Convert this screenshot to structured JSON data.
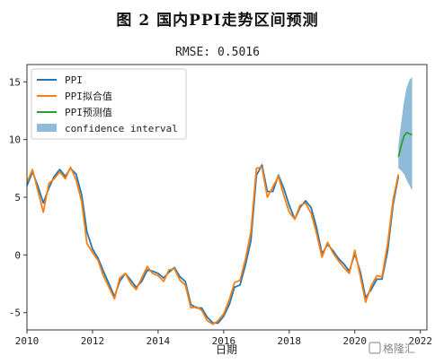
{
  "figure_title": "图 2   国内PPI走势区间预测",
  "watermark": "格隆汇",
  "chart_data": {
    "type": "line",
    "subtitle": "RMSE: 0.5016",
    "xlabel": "日期",
    "ylabel": "",
    "xlim": [
      2010.0,
      2022.2
    ],
    "ylim": [
      -6.5,
      16.5
    ],
    "xticks": [
      2010,
      2012,
      2014,
      2016,
      2018,
      2020,
      2022
    ],
    "yticks": [
      -5,
      0,
      5,
      10,
      15
    ],
    "grid": false,
    "legend_position": "top-left",
    "series": [
      {
        "name": "PPI",
        "color": "#1f77b4",
        "x": [
          2010.0,
          2010.17,
          2010.33,
          2010.5,
          2010.67,
          2010.83,
          2011.0,
          2011.17,
          2011.33,
          2011.5,
          2011.67,
          2011.83,
          2012.0,
          2012.17,
          2012.33,
          2012.5,
          2012.67,
          2012.83,
          2013.0,
          2013.17,
          2013.33,
          2013.5,
          2013.67,
          2013.83,
          2014.0,
          2014.17,
          2014.33,
          2014.5,
          2014.67,
          2014.83,
          2015.0,
          2015.17,
          2015.33,
          2015.5,
          2015.67,
          2015.83,
          2016.0,
          2016.17,
          2016.33,
          2016.5,
          2016.67,
          2016.83,
          2017.0,
          2017.17,
          2017.33,
          2017.5,
          2017.67,
          2017.83,
          2018.0,
          2018.17,
          2018.33,
          2018.5,
          2018.67,
          2018.83,
          2019.0,
          2019.17,
          2019.33,
          2019.5,
          2019.67,
          2019.83,
          2020.0,
          2020.17,
          2020.33,
          2020.5,
          2020.67,
          2020.83,
          2021.0,
          2021.17,
          2021.33
        ],
        "values": [
          6.0,
          7.2,
          6.0,
          4.5,
          5.8,
          6.8,
          7.4,
          6.8,
          7.5,
          7.0,
          5.2,
          2.0,
          0.5,
          -0.3,
          -1.4,
          -2.5,
          -3.6,
          -2.3,
          -1.6,
          -2.2,
          -2.8,
          -2.3,
          -1.3,
          -1.4,
          -1.6,
          -2.0,
          -1.5,
          -1.1,
          -1.9,
          -2.3,
          -4.3,
          -4.6,
          -4.6,
          -5.4,
          -5.9,
          -5.9,
          -5.3,
          -4.3,
          -2.8,
          -2.6,
          -0.8,
          1.2,
          6.9,
          7.8,
          5.5,
          5.5,
          6.9,
          5.8,
          4.3,
          3.1,
          4.1,
          4.7,
          4.1,
          2.4,
          0.1,
          0.9,
          0.4,
          -0.3,
          -0.8,
          -1.4,
          0.1,
          -1.5,
          -3.7,
          -3.0,
          -2.1,
          -2.1,
          0.3,
          4.4,
          6.8
        ]
      },
      {
        "name": "PPI拟合值",
        "color": "#ff7f0e",
        "x": [
          2010.0,
          2010.17,
          2010.33,
          2010.5,
          2010.67,
          2010.83,
          2011.0,
          2011.17,
          2011.33,
          2011.5,
          2011.67,
          2011.83,
          2012.0,
          2012.17,
          2012.33,
          2012.5,
          2012.67,
          2012.83,
          2013.0,
          2013.17,
          2013.33,
          2013.5,
          2013.67,
          2013.83,
          2014.0,
          2014.17,
          2014.33,
          2014.5,
          2014.67,
          2014.83,
          2015.0,
          2015.17,
          2015.33,
          2015.5,
          2015.67,
          2015.83,
          2016.0,
          2016.17,
          2016.33,
          2016.5,
          2016.67,
          2016.83,
          2017.0,
          2017.17,
          2017.33,
          2017.5,
          2017.67,
          2017.83,
          2018.0,
          2018.17,
          2018.33,
          2018.5,
          2018.67,
          2018.83,
          2019.0,
          2019.17,
          2019.33,
          2019.5,
          2019.67,
          2019.83,
          2020.0,
          2020.17,
          2020.33,
          2020.5,
          2020.67,
          2020.83,
          2021.0,
          2021.17,
          2021.33
        ],
        "values": [
          6.3,
          7.4,
          5.6,
          3.7,
          6.2,
          6.6,
          7.2,
          6.6,
          7.6,
          6.5,
          4.6,
          1.0,
          0.2,
          -0.5,
          -1.8,
          -2.8,
          -3.8,
          -2.0,
          -1.6,
          -2.5,
          -3.0,
          -2.0,
          -1.0,
          -1.6,
          -1.8,
          -2.3,
          -1.3,
          -1.2,
          -2.2,
          -2.6,
          -4.6,
          -4.5,
          -4.8,
          -5.7,
          -6.0,
          -5.7,
          -5.1,
          -3.9,
          -2.4,
          -2.2,
          -0.3,
          2.0,
          7.5,
          7.6,
          5.0,
          5.9,
          6.8,
          5.2,
          3.7,
          3.1,
          4.3,
          4.5,
          3.6,
          1.9,
          -0.2,
          1.1,
          0.2,
          -0.5,
          -1.1,
          -1.6,
          0.4,
          -1.9,
          -4.1,
          -2.7,
          -1.8,
          -1.9,
          0.9,
          4.8,
          7.0
        ]
      },
      {
        "name": "PPI预测值",
        "color": "#2ca02c",
        "x": [
          2021.33,
          2021.42,
          2021.5,
          2021.58,
          2021.67,
          2021.75
        ],
        "values": [
          8.5,
          9.5,
          10.3,
          10.6,
          10.5,
          10.4
        ]
      }
    ],
    "confidence_interval": {
      "name": "confidence interval",
      "color": "#1f77b4",
      "x": [
        2021.33,
        2021.42,
        2021.5,
        2021.58,
        2021.67,
        2021.75
      ],
      "upper": [
        9.5,
        11.5,
        13.3,
        14.5,
        15.2,
        15.4
      ],
      "lower": [
        7.5,
        7.3,
        7.0,
        6.5,
        6.0,
        5.6
      ]
    }
  }
}
